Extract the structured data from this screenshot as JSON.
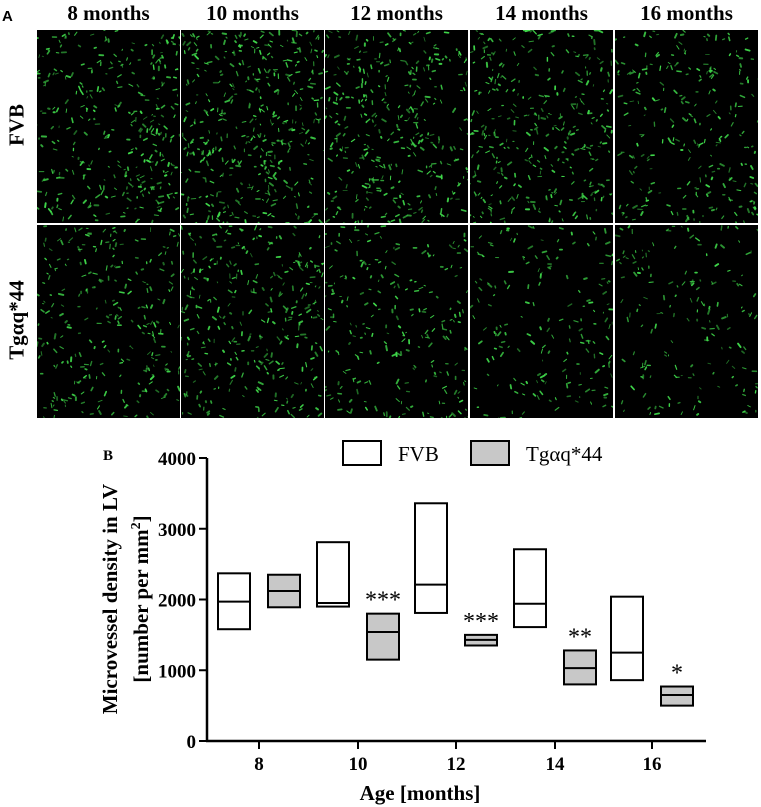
{
  "panel_a": {
    "label": "A",
    "columns": [
      "8 months",
      "10 months",
      "12 months",
      "14 months",
      "16 months"
    ],
    "rows": [
      "FVB",
      "Tgαq*44"
    ],
    "stain_color": "#3fd84a",
    "background_color": "#000000"
  },
  "chart_data": {
    "panel_label": "B",
    "type": "box",
    "title": "",
    "xlabel": "Age [months]",
    "ylabel_line1": "Microvessel density in LV",
    "ylabel_line2_prefix": "[number per mm",
    "ylabel_superscript": "2",
    "ylabel_line2_suffix": "]",
    "ylim": [
      0,
      4000
    ],
    "yticks": [
      0,
      1000,
      2000,
      3000,
      4000
    ],
    "categories": [
      "8",
      "10",
      "12",
      "14",
      "16"
    ],
    "legend_position": "top-right",
    "series": [
      {
        "name": "FVB",
        "fill": "#ffffff",
        "boxes": [
          {
            "min": 1580,
            "median": 1970,
            "max": 2370
          },
          {
            "min": 1900,
            "median": 1950,
            "max": 2810
          },
          {
            "min": 1810,
            "median": 2210,
            "max": 3360
          },
          {
            "min": 1610,
            "median": 1940,
            "max": 2710
          },
          {
            "min": 860,
            "median": 1250,
            "max": 2040
          }
        ]
      },
      {
        "name": "Tgαq*44",
        "fill": "#c8c8c8",
        "boxes": [
          {
            "min": 1890,
            "median": 2120,
            "max": 2350
          },
          {
            "min": 1150,
            "median": 1540,
            "max": 1800
          },
          {
            "min": 1350,
            "median": 1430,
            "max": 1500
          },
          {
            "min": 800,
            "median": 1030,
            "max": 1280
          },
          {
            "min": 500,
            "median": 650,
            "max": 770
          }
        ]
      }
    ],
    "significance": [
      "",
      "***",
      "***",
      "**",
      "*"
    ]
  }
}
